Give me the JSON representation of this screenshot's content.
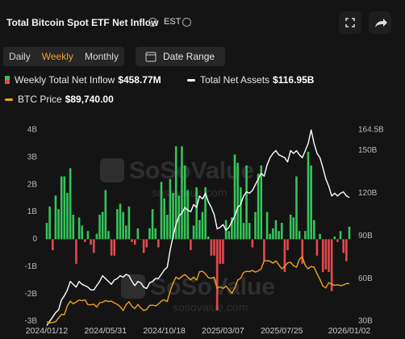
{
  "header": {
    "title": "Total Bitcoin Spot ETF Net Inflow",
    "timezone": "EST"
  },
  "tabs": [
    "Daily",
    "Weekly",
    "Monthly"
  ],
  "active_tab": 1,
  "date_range": "Date Range",
  "watermark": {
    "brand": "SoSoValue",
    "url": "sosovalue.com"
  },
  "chart_data": {
    "type": "bar-line",
    "series": [
      {
        "name": "Weekly Total Net Inflow",
        "type": "bar",
        "color": "#35c45a",
        "negative_color": "#e5484d",
        "latest_label": "$458.77M",
        "values": [
          0.6,
          1.2,
          -0.4,
          1.6,
          1.1,
          2.3,
          2.3,
          1.7,
          2.6,
          0.9,
          -0.9,
          0.8,
          0.5,
          -0.1,
          0.3,
          -0.2,
          -0.5,
          0.2,
          0.9,
          1.0,
          1.8,
          0.3,
          -0.6,
          -0.6,
          1.1,
          1.3,
          1.0,
          0.5,
          1.2,
          -0.1,
          -0.2,
          0.4,
          0.0,
          -0.5,
          -0.3,
          0.4,
          1.1,
          0.4,
          -0.3,
          2.1,
          1.5,
          0.9,
          2.2,
          1.7,
          3.4,
          1.6,
          3.4,
          2.7,
          1.8,
          -0.4,
          0.5,
          1.9,
          0.7,
          1.0,
          1.9,
          0.1,
          -0.6,
          -0.6,
          -2.6,
          -0.9,
          -0.9,
          0.7,
          0.3,
          0.8,
          3.1,
          2.8,
          1.9,
          0.6,
          2.7,
          0.6,
          -0.3,
          1.0,
          2.4,
          2.7,
          -0.8,
          1.0,
          0.2,
          0.4,
          0.7,
          0.3,
          0.6,
          -1.2,
          -0.4,
          0.9,
          0.8,
          2.3,
          0.3,
          -0.9,
          0.3,
          3.2,
          2.7,
          0.7,
          -0.6,
          0.2,
          -1.2,
          -1.1,
          -1.2,
          -1.9,
          0.1,
          -0.1,
          0.3,
          -0.5,
          -0.8,
          0.45877
        ]
      },
      {
        "name": "Total Net Assets",
        "type": "line",
        "axis": "y2",
        "color": "#ffffff",
        "latest_label": "$116.95B",
        "values": [
          27,
          30,
          33,
          36,
          38,
          45,
          48,
          52,
          58,
          56,
          54,
          58,
          56,
          55,
          54,
          52,
          52,
          55,
          58,
          62,
          60,
          58,
          56,
          59,
          60,
          62,
          61,
          63,
          62,
          58,
          55,
          58,
          57,
          54,
          53,
          57,
          58,
          60,
          60,
          63,
          66,
          68,
          80,
          90,
          98,
          104,
          106,
          110,
          108,
          107,
          112,
          110,
          118,
          116,
          120,
          114,
          110,
          105,
          95,
          96,
          98,
          94,
          96,
          100,
          104,
          110,
          112,
          118,
          121,
          120,
          122,
          126,
          130,
          134,
          132,
          140,
          145,
          148,
          150,
          147,
          146,
          145,
          142,
          150,
          148,
          150,
          147,
          145,
          150,
          155,
          164.5,
          155,
          148,
          145,
          138,
          130,
          125,
          118,
          120,
          118,
          120,
          121,
          118,
          116.95
        ]
      },
      {
        "name": "BTC Price",
        "type": "line",
        "axis": "none",
        "color": "#f0a020",
        "latest_label": "$89,740.00",
        "values": [
          42800,
          41600,
          42000,
          43000,
          47800,
          52000,
          51600,
          62500,
          68300,
          65000,
          67200,
          69700,
          68900,
          70000,
          64000,
          63800,
          64500,
          61000,
          66200,
          67000,
          69000,
          67800,
          68500,
          66000,
          64300,
          61600,
          56700,
          64000,
          67500,
          61700,
          59300,
          64200,
          60000,
          56700,
          58000,
          63000,
          63300,
          62400,
          64700,
          68400,
          69900,
          67800,
          80400,
          90600,
          98000,
          95300,
          98800,
          101000,
          97800,
          94400,
          98000,
          94200,
          104400,
          105000,
          102000,
          97200,
          96500,
          97600,
          84300,
          86000,
          84000,
          86800,
          82600,
          78000,
          84500,
          94300,
          96500,
          103600,
          105000,
          104600,
          106000,
          104000,
          105500,
          108000,
          118000,
          117900,
          117500,
          115000,
          117800,
          113000,
          108000,
          111000,
          115500,
          116000,
          112000,
          110000,
          119800,
          123000,
          112200,
          108000,
          111000,
          110000,
          102000,
          95000,
          87000,
          84600,
          91000,
          89000,
          88000,
          88500,
          87500,
          88200,
          90000,
          89740
        ]
      }
    ],
    "xlim": [
      0,
      103
    ],
    "xticks": [
      {
        "value": 0,
        "label": "2024/01/12"
      },
      {
        "value": 20,
        "label": "2024/05/31"
      },
      {
        "value": 40,
        "label": "2024/10/18"
      },
      {
        "value": 60,
        "label": "2025/03/07"
      },
      {
        "value": 80,
        "label": "2025/07/25"
      },
      {
        "value": 103,
        "label": "2026/01/02"
      }
    ],
    "ylim": [
      -3,
      4
    ],
    "yticks": [
      {
        "value": -3,
        "label": "-3B"
      },
      {
        "value": -2,
        "label": "-2B"
      },
      {
        "value": -1,
        "label": "-1B"
      },
      0,
      {
        "value": 1,
        "label": "1B"
      },
      {
        "value": 2,
        "label": "2B"
      },
      {
        "value": 3,
        "label": "3B"
      },
      {
        "value": 4,
        "label": "4B"
      }
    ],
    "y2lim": [
      30,
      164.5
    ],
    "y2ticks": [
      {
        "value": 30,
        "label": "30B"
      },
      {
        "value": 60,
        "label": "60B"
      },
      {
        "value": 90,
        "label": "90B"
      },
      {
        "value": 120,
        "label": "120B"
      },
      {
        "value": 150,
        "label": "150B"
      },
      {
        "value": 164.5,
        "label": "164.5B"
      }
    ],
    "grid": false
  }
}
